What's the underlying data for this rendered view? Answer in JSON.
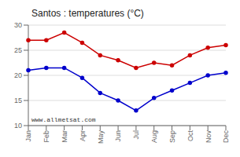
{
  "chart_data": {
    "type": "line",
    "title": "Santos : temperatures (°C)",
    "categories": [
      "Jan",
      "Feb",
      "Mar",
      "Apr",
      "May",
      "Jun",
      "Jul",
      "Aug",
      "Sep",
      "Oct",
      "Nov",
      "Dec"
    ],
    "series": [
      {
        "color": "#cc0000",
        "values": [
          27.0,
          27.0,
          28.5,
          26.5,
          24.0,
          23.0,
          21.5,
          22.5,
          22.0,
          24.0,
          25.5,
          26.0
        ],
        "marker": "circle"
      },
      {
        "color": "#0000cc",
        "values": [
          21.0,
          21.5,
          21.5,
          19.5,
          16.5,
          15.0,
          13.0,
          15.5,
          17.0,
          18.5,
          20.0,
          20.5
        ],
        "marker": "circle"
      }
    ],
    "ylim": [
      10,
      30
    ],
    "yticks": [
      10,
      15,
      20,
      25,
      30
    ],
    "grid": true,
    "annotations": [
      "www.allmetsat.com"
    ]
  }
}
